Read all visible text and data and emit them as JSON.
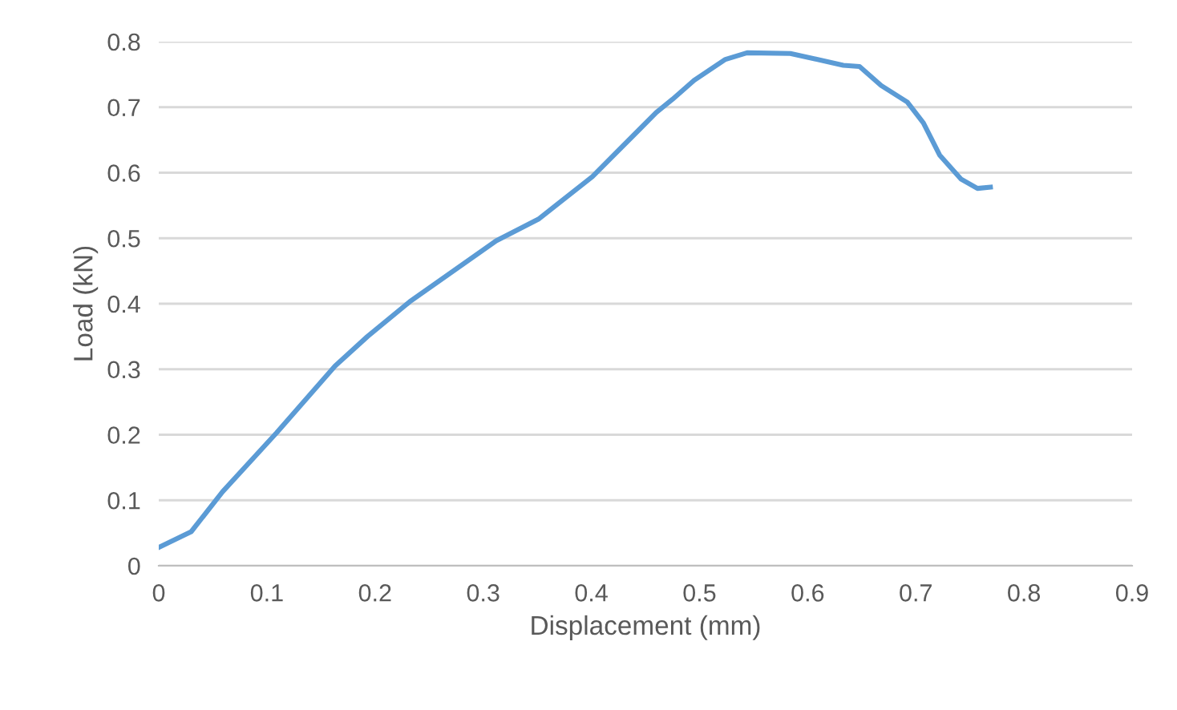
{
  "chart_data": {
    "type": "line",
    "xlabel": "Displacement (mm)",
    "ylabel": "Load (kN)",
    "xlim": [
      0,
      0.9
    ],
    "ylim": [
      0,
      0.8
    ],
    "xticks": [
      0,
      0.1,
      0.2,
      0.3,
      0.4,
      0.5,
      0.6,
      0.7,
      0.8,
      0.9
    ],
    "yticks": [
      0,
      0.1,
      0.2,
      0.3,
      0.4,
      0.5,
      0.6,
      0.7,
      0.8
    ],
    "grid": "y",
    "marker": "none",
    "line_style": "solid",
    "series": [
      {
        "color": "#5b9bd5",
        "x": [
          0,
          0.03,
          0.059,
          0.109,
          0.163,
          0.193,
          0.232,
          0.312,
          0.351,
          0.401,
          0.445,
          0.46,
          0.475,
          0.495,
          0.524,
          0.544,
          0.584,
          0.633,
          0.648,
          0.668,
          0.692,
          0.707,
          0.722,
          0.742,
          0.757,
          0.769
        ],
        "values": [
          0.028,
          0.052,
          0.113,
          0.203,
          0.305,
          0.35,
          0.403,
          0.496,
          0.529,
          0.594,
          0.667,
          0.692,
          0.712,
          0.741,
          0.773,
          0.783,
          0.782,
          0.764,
          0.762,
          0.733,
          0.708,
          0.676,
          0.627,
          0.59,
          0.576,
          0.578
        ]
      }
    ]
  }
}
